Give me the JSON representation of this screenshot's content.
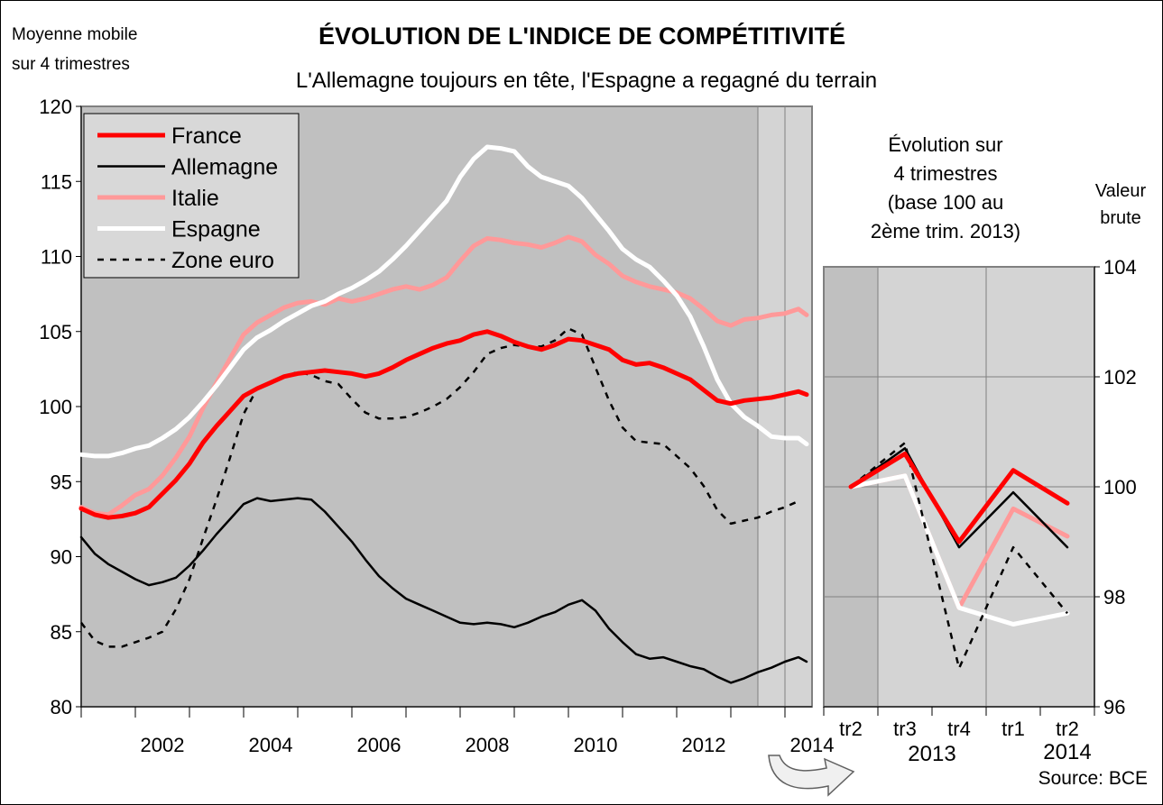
{
  "header": {
    "ylabel_line1": "Moyenne mobile",
    "ylabel_line2": "sur 4 trimestres",
    "title": "ÉVOLUTION DE L'INDICE DE COMPÉTITIVITÉ",
    "subtitle": "L'Allemagne toujours en tête, l'Espagne a regagné du terrain"
  },
  "colors": {
    "france": "#ff0000",
    "allemagne": "#000000",
    "italie": "#ff9999",
    "espagne": "#ffffff",
    "zone_euro": "#000000",
    "plot_bg": "#c0c0c0",
    "highlight_bg": "#d4d4d4"
  },
  "chart_data": [
    {
      "type": "line",
      "ylim": [
        80,
        120
      ],
      "yticks": [
        "80",
        "85",
        "90",
        "95",
        "100",
        "105",
        "110",
        "115",
        "120"
      ],
      "xlim": [
        2001,
        2014.5
      ],
      "xticks": [
        "2002",
        "2004",
        "2006",
        "2008",
        "2010",
        "2012",
        "2014"
      ],
      "legend_position": "top-left",
      "grid": false,
      "series": [
        {
          "name": "France",
          "color": "#ff0000",
          "style": "thick",
          "x": [
            2001.0,
            2001.25,
            2001.5,
            2001.75,
            2002.0,
            2002.25,
            2002.5,
            2002.75,
            2003.0,
            2003.25,
            2003.5,
            2003.75,
            2004.0,
            2004.25,
            2004.5,
            2004.75,
            2005.0,
            2005.25,
            2005.5,
            2005.75,
            2006.0,
            2006.25,
            2006.5,
            2006.75,
            2007.0,
            2007.25,
            2007.5,
            2007.75,
            2008.0,
            2008.25,
            2008.5,
            2008.75,
            2009.0,
            2009.25,
            2009.5,
            2009.75,
            2010.0,
            2010.25,
            2010.5,
            2010.75,
            2011.0,
            2011.25,
            2011.5,
            2011.75,
            2012.0,
            2012.25,
            2012.5,
            2012.75,
            2013.0,
            2013.25,
            2013.5,
            2013.75,
            2014.0,
            2014.25,
            2014.4
          ],
          "y": [
            93.2,
            92.8,
            92.6,
            92.7,
            92.9,
            93.3,
            94.2,
            95.1,
            96.2,
            97.6,
            98.7,
            99.7,
            100.7,
            101.2,
            101.6,
            102.0,
            102.2,
            102.3,
            102.4,
            102.3,
            102.2,
            102.0,
            102.2,
            102.6,
            103.1,
            103.5,
            103.9,
            104.2,
            104.4,
            104.8,
            105.0,
            104.7,
            104.3,
            104.0,
            103.8,
            104.1,
            104.5,
            104.4,
            104.1,
            103.8,
            103.1,
            102.8,
            102.9,
            102.6,
            102.2,
            101.8,
            101.1,
            100.4,
            100.2,
            100.4,
            100.5,
            100.6,
            100.8,
            101.0,
            100.8
          ]
        },
        {
          "name": "Allemagne",
          "color": "#000000",
          "style": "solid",
          "x": [
            2001.0,
            2001.25,
            2001.5,
            2001.75,
            2002.0,
            2002.25,
            2002.5,
            2002.75,
            2003.0,
            2003.25,
            2003.5,
            2003.75,
            2004.0,
            2004.25,
            2004.5,
            2004.75,
            2005.0,
            2005.25,
            2005.5,
            2005.75,
            2006.0,
            2006.25,
            2006.5,
            2006.75,
            2007.0,
            2007.25,
            2007.5,
            2007.75,
            2008.0,
            2008.25,
            2008.5,
            2008.75,
            2009.0,
            2009.25,
            2009.5,
            2009.75,
            2010.0,
            2010.25,
            2010.5,
            2010.75,
            2011.0,
            2011.25,
            2011.5,
            2011.75,
            2012.0,
            2012.25,
            2012.5,
            2012.75,
            2013.0,
            2013.25,
            2013.5,
            2013.75,
            2014.0,
            2014.25,
            2014.4
          ],
          "y": [
            91.3,
            90.2,
            89.5,
            89.0,
            88.5,
            88.1,
            88.3,
            88.6,
            89.4,
            90.4,
            91.5,
            92.5,
            93.5,
            93.9,
            93.7,
            93.8,
            93.9,
            93.8,
            93.0,
            92.0,
            91.0,
            89.8,
            88.7,
            87.9,
            87.2,
            86.8,
            86.4,
            86.0,
            85.6,
            85.5,
            85.6,
            85.5,
            85.3,
            85.6,
            86.0,
            86.3,
            86.8,
            87.1,
            86.4,
            85.2,
            84.3,
            83.5,
            83.2,
            83.3,
            83.0,
            82.7,
            82.5,
            82.0,
            81.6,
            81.9,
            82.3,
            82.6,
            83.0,
            83.3,
            83.0
          ]
        },
        {
          "name": "Italie",
          "color": "#ff9999",
          "style": "thick",
          "x": [
            2001.0,
            2001.25,
            2001.5,
            2001.75,
            2002.0,
            2002.25,
            2002.5,
            2002.75,
            2003.0,
            2003.25,
            2003.5,
            2003.75,
            2004.0,
            2004.25,
            2004.5,
            2004.75,
            2005.0,
            2005.25,
            2005.5,
            2005.75,
            2006.0,
            2006.25,
            2006.5,
            2006.75,
            2007.0,
            2007.25,
            2007.5,
            2007.75,
            2008.0,
            2008.25,
            2008.5,
            2008.75,
            2009.0,
            2009.25,
            2009.5,
            2009.75,
            2010.0,
            2010.25,
            2010.5,
            2010.75,
            2011.0,
            2011.25,
            2011.5,
            2011.75,
            2012.0,
            2012.25,
            2012.5,
            2012.75,
            2013.0,
            2013.25,
            2013.5,
            2013.75,
            2014.0,
            2014.25,
            2014.4
          ],
          "y": [
            93.3,
            92.9,
            92.8,
            93.4,
            94.1,
            94.5,
            95.4,
            96.6,
            98.0,
            99.9,
            101.6,
            103.2,
            104.8,
            105.6,
            106.1,
            106.6,
            106.9,
            107.0,
            106.8,
            107.2,
            107.0,
            107.2,
            107.5,
            107.8,
            108.0,
            107.8,
            108.1,
            108.6,
            109.7,
            110.7,
            111.2,
            111.1,
            110.9,
            110.8,
            110.6,
            110.9,
            111.3,
            111.0,
            110.1,
            109.5,
            108.7,
            108.3,
            108.0,
            107.8,
            107.6,
            107.2,
            106.5,
            105.7,
            105.4,
            105.8,
            105.9,
            106.1,
            106.2,
            106.5,
            106.1
          ]
        },
        {
          "name": "Espagne",
          "color": "#ffffff",
          "style": "thick",
          "x": [
            2001.0,
            2001.25,
            2001.5,
            2001.75,
            2002.0,
            2002.25,
            2002.5,
            2002.75,
            2003.0,
            2003.25,
            2003.5,
            2003.75,
            2004.0,
            2004.25,
            2004.5,
            2004.75,
            2005.0,
            2005.25,
            2005.5,
            2005.75,
            2006.0,
            2006.25,
            2006.5,
            2006.75,
            2007.0,
            2007.25,
            2007.5,
            2007.75,
            2008.0,
            2008.25,
            2008.5,
            2008.75,
            2009.0,
            2009.25,
            2009.5,
            2009.75,
            2010.0,
            2010.25,
            2010.5,
            2010.75,
            2011.0,
            2011.25,
            2011.5,
            2011.75,
            2012.0,
            2012.25,
            2012.5,
            2012.75,
            2013.0,
            2013.25,
            2013.5,
            2013.75,
            2014.0,
            2014.25,
            2014.4
          ],
          "y": [
            96.8,
            96.7,
            96.7,
            96.9,
            97.2,
            97.4,
            97.9,
            98.5,
            99.3,
            100.3,
            101.4,
            102.6,
            103.8,
            104.6,
            105.1,
            105.7,
            106.2,
            106.7,
            107.0,
            107.5,
            107.9,
            108.4,
            109.0,
            109.8,
            110.7,
            111.7,
            112.7,
            113.7,
            115.3,
            116.5,
            117.3,
            117.2,
            117.0,
            116.0,
            115.3,
            115.0,
            114.7,
            113.9,
            112.8,
            111.7,
            110.5,
            109.8,
            109.3,
            108.4,
            107.4,
            106.0,
            104.0,
            101.8,
            100.2,
            99.3,
            98.7,
            98.0,
            97.9,
            97.9,
            97.5
          ]
        },
        {
          "name": "Zone euro",
          "color": "#000000",
          "style": "dashed",
          "x": [
            2001.0,
            2001.25,
            2001.5,
            2001.75,
            2002.0,
            2002.25,
            2002.5,
            2002.75,
            2003.0,
            2003.25,
            2003.5,
            2003.75,
            2004.0,
            2004.25,
            2004.5,
            2004.75,
            2005.0,
            2005.25,
            2005.5,
            2005.75,
            2006.0,
            2006.25,
            2006.5,
            2006.75,
            2007.0,
            2007.25,
            2007.5,
            2007.75,
            2008.0,
            2008.25,
            2008.5,
            2008.75,
            2009.0,
            2009.25,
            2009.5,
            2009.75,
            2010.0,
            2010.25,
            2010.5,
            2010.75,
            2011.0,
            2011.25,
            2011.5,
            2011.75,
            2012.0,
            2012.25,
            2012.5,
            2012.75,
            2013.0,
            2013.25,
            2013.5,
            2013.75,
            2014.0,
            2014.25
          ],
          "y": [
            85.6,
            84.4,
            84.0,
            84.0,
            84.3,
            84.6,
            85.0,
            86.5,
            88.5,
            91.2,
            93.8,
            96.6,
            99.5,
            101.2,
            101.6,
            102.0,
            102.3,
            102.1,
            101.7,
            101.5,
            100.5,
            99.6,
            99.2,
            99.2,
            99.3,
            99.6,
            100.0,
            100.5,
            101.3,
            102.3,
            103.5,
            103.9,
            104.1,
            104.0,
            104.0,
            104.4,
            105.2,
            104.8,
            102.6,
            100.4,
            98.6,
            97.7,
            97.6,
            97.5,
            96.7,
            95.9,
            94.7,
            93.1,
            92.2,
            92.4,
            92.6,
            93.0,
            93.3,
            93.7
          ]
        }
      ]
    },
    {
      "type": "line",
      "title": "Évolution sur 4 trimestres (base 100 au 2ème trim. 2013)",
      "title_lines": [
        "Évolution sur",
        "4 trimestres",
        "(base 100 au",
        "2ème trim. 2013)"
      ],
      "ylabel_lines": [
        "Valeur",
        "brute"
      ],
      "ylim": [
        96,
        104
      ],
      "yticks": [
        "96",
        "98",
        "100",
        "102",
        "104"
      ],
      "categories": [
        "tr2",
        "tr3",
        "tr4",
        "tr1",
        "tr2"
      ],
      "year_labels": [
        "2013",
        "2014"
      ],
      "series": [
        {
          "name": "France",
          "values": [
            100,
            100.6,
            99.0,
            100.3,
            99.7
          ]
        },
        {
          "name": "Allemagne",
          "values": [
            100,
            100.7,
            98.9,
            99.9,
            98.9
          ]
        },
        {
          "name": "Italie",
          "values": [
            100,
            100.2,
            97.8,
            99.6,
            99.1
          ]
        },
        {
          "name": "Espagne",
          "values": [
            100,
            100.2,
            97.8,
            97.5,
            97.7
          ]
        },
        {
          "name": "Zone euro",
          "values": [
            100,
            100.8,
            96.7,
            98.9,
            97.7
          ]
        }
      ]
    }
  ],
  "source": "Source: BCE"
}
